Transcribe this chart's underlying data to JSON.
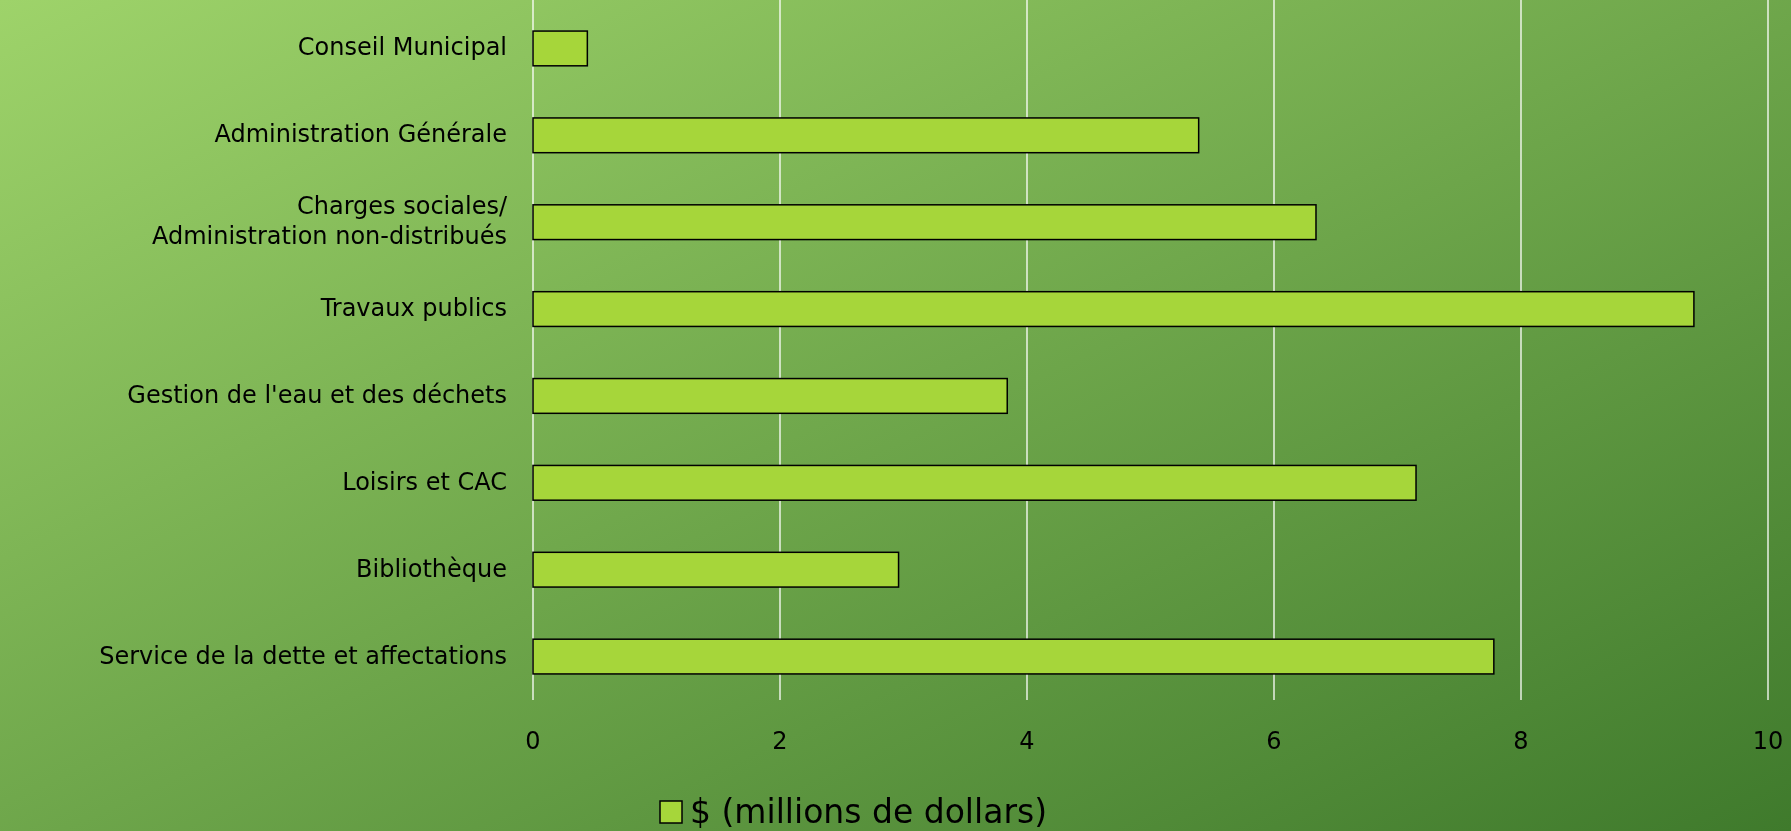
{
  "chart_data": {
    "type": "bar",
    "orientation": "horizontal",
    "categories": [
      "Conseil Municipal",
      "Administration Générale",
      "Charges sociales/\nAdministration non-distribués",
      "Travaux publics",
      "Gestion de l'eau et des déchets",
      "Loisirs et CAC",
      "Bibliothèque",
      "Service de la dette et affectations"
    ],
    "series": [
      {
        "name": "$ (millions de dollars)",
        "color": "#a6d63a",
        "values": [
          0.44,
          5.39,
          6.34,
          9.4,
          3.84,
          7.15,
          2.96,
          7.78
        ]
      }
    ],
    "xlim": [
      0,
      10
    ],
    "xticks": [
      0,
      2,
      4,
      6,
      8,
      10
    ],
    "grid": "x",
    "legend": "bottom"
  }
}
